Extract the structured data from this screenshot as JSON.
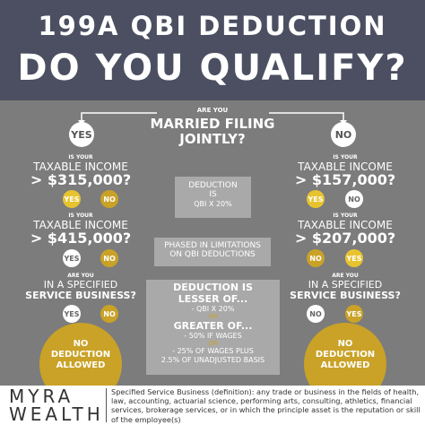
{
  "header": {
    "line1": "199A QBI DEDUCTION",
    "line2": "DO YOU QUALIFY?"
  },
  "question": {
    "lead": "ARE YOU",
    "lines": [
      "MARRIED FILING",
      "JOINTLY?"
    ],
    "yes": "YES",
    "no": "NO"
  },
  "left": {
    "steps": [
      {
        "lead": "IS YOUR",
        "text": "TAXABLE INCOME",
        "emph": "> $315,000?",
        "first": "YES",
        "second": "NO"
      },
      {
        "lead": "IS YOUR",
        "text": "TAXABLE INCOME",
        "emph": "> $415,000?",
        "first": "YES",
        "second": "NO"
      },
      {
        "lead": "ARE YOU",
        "text": "IN A SPECIFIED",
        "emph": "SERVICE BUSINESS?",
        "first": "YES",
        "second": "NO"
      }
    ],
    "result": [
      "NO",
      "DEDUCTION",
      "ALLOWED"
    ]
  },
  "right": {
    "steps": [
      {
        "lead": "IS YOUR",
        "text": "TAXABLE INCOME",
        "emph": "> $157,000?",
        "first": "YES",
        "second": "NO"
      },
      {
        "lead": "IS YOUR",
        "text": "TAXABLE INCOME",
        "emph": "> $207,000?",
        "first": "NO",
        "second": "YES"
      },
      {
        "lead": "ARE YOU",
        "text": "IN A SPECIFIED",
        "emph": "SERVICE BUSINESS?",
        "first": "NO",
        "second": "YES"
      }
    ],
    "result": [
      "NO",
      "DEDUCTION",
      "ALLOWED"
    ]
  },
  "center": {
    "box1": [
      "DEDUCTION",
      "IS",
      "QBI X 20%"
    ],
    "box2": [
      "PHASED IN LIMITATIONS",
      "ON QBI DEDUCTIONS"
    ],
    "box3": [
      "DEDUCTION IS",
      "LESSER OF...",
      "- QBI X 20%",
      "OR",
      "GREATER OF...",
      "- 50% IF WAGES",
      "OR",
      "- 25% OF WAGES PLUS",
      "2.5% OF UNADJUSTED BASIS"
    ]
  },
  "footer": {
    "logo": [
      "MYRA",
      "WEALTH"
    ],
    "definition": "Specified Service Business (definition): any trade or business in the fields of health, law, accounting, actuarial science, performing arts, consulting, athletics, financial services, brokerage services, or in which the principle asset is the reputation or skill of the employee(s)"
  }
}
